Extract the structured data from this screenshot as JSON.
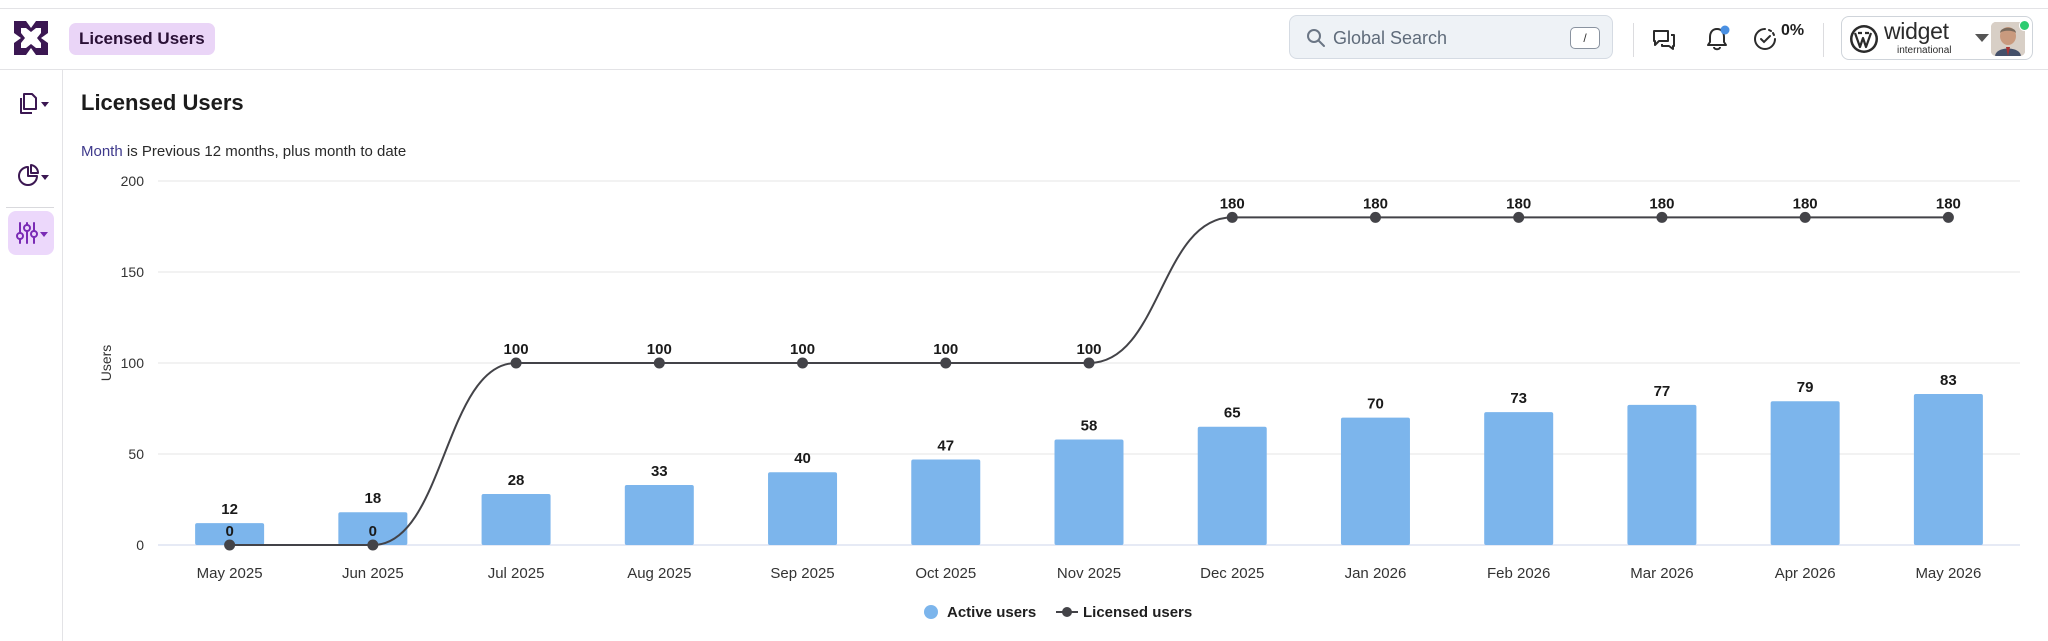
{
  "header": {
    "breadcrumb": "Licensed Users",
    "search_placeholder": "Global Search",
    "search_shortcut": "/",
    "progress_label": "0%",
    "brand_name": "widget",
    "brand_sub": "international",
    "icons": [
      "app-logo-icon",
      "chat-icon",
      "bell-icon",
      "timer-icon",
      "wordpress-logo-icon"
    ],
    "notification_dot_color": "#4a90e2"
  },
  "sidebar": {
    "items": [
      {
        "name": "pages",
        "icon": "documents-icon"
      },
      {
        "name": "analytics",
        "icon": "pie-chart-icon"
      },
      {
        "name": "settings",
        "icon": "sliders-icon",
        "active": true
      }
    ]
  },
  "main": {
    "title": "Licensed Users",
    "filter_key": "Month",
    "filter_text": " is Previous 12 months, plus month to date"
  },
  "chart_data": {
    "type": "bar",
    "categories": [
      "May 2025",
      "Jun 2025",
      "Jul 2025",
      "Aug 2025",
      "Sep 2025",
      "Oct 2025",
      "Nov 2025",
      "Dec 2025",
      "Jan 2026",
      "Feb 2026",
      "Mar 2026",
      "Apr 2026",
      "May 2026"
    ],
    "series": [
      {
        "name": "Active users",
        "type": "bar",
        "color": "#7cb5ec",
        "values": [
          12,
          18,
          28,
          33,
          40,
          47,
          58,
          65,
          70,
          73,
          77,
          79,
          83
        ]
      },
      {
        "name": "Licensed users",
        "type": "line",
        "color": "#434348",
        "values": [
          0,
          0,
          100,
          100,
          100,
          100,
          100,
          180,
          180,
          180,
          180,
          180,
          180
        ]
      }
    ],
    "ylabel": "Users",
    "xlabel": "",
    "ylim": [
      0,
      200
    ],
    "yticks": [
      0,
      50,
      100,
      150,
      200
    ],
    "grid": true,
    "legend": "bottom-center"
  }
}
